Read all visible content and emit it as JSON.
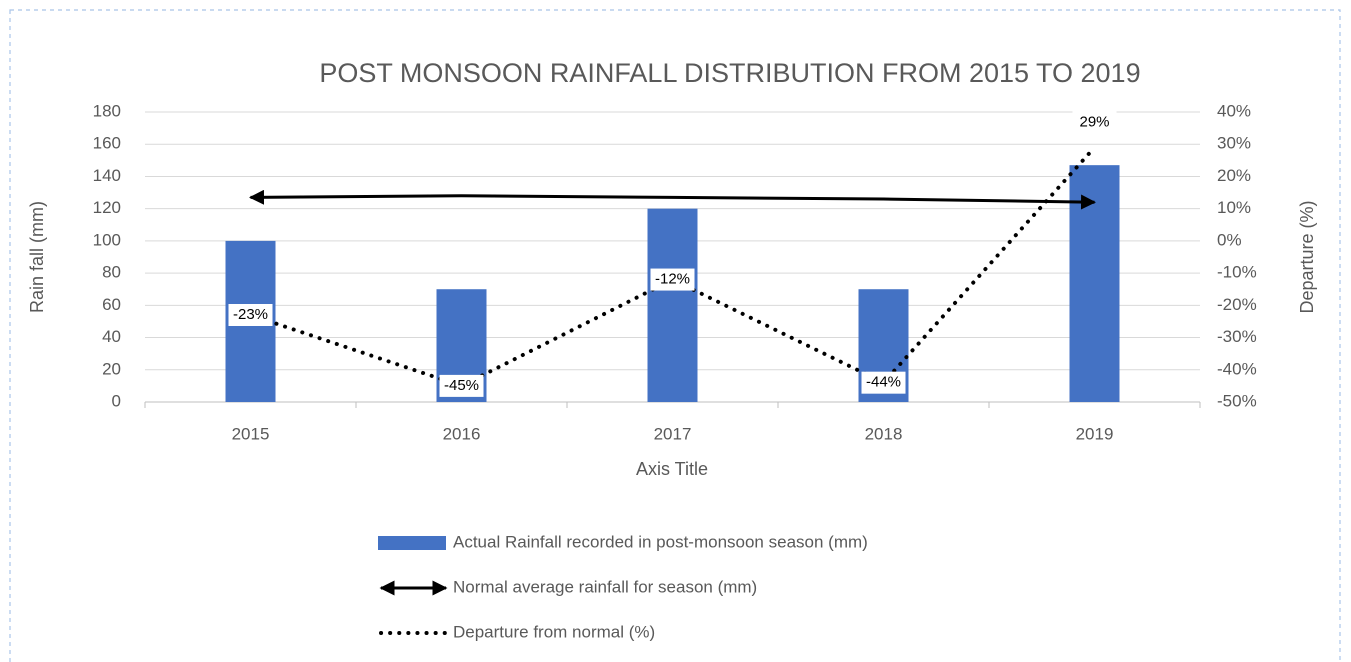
{
  "chart_data": {
    "type": "bar",
    "title": "POST MONSOON  RAINFALL DISTRIBUTION FROM 2015 TO 2019",
    "x_label": "Axis Title",
    "y_label": "Rain fall (mm)",
    "y2_label": "Departure (%)",
    "categories": [
      "2015",
      "2016",
      "2017",
      "2018",
      "2019"
    ],
    "series": [
      {
        "name": "Actual Rainfall recorded in post-monsoon season (mm)",
        "type": "bar",
        "color": "#4472c4",
        "values": [
          100,
          70,
          120,
          70,
          147
        ]
      },
      {
        "name": "Normal average rainfall for season (mm)",
        "type": "line",
        "marker": "arrow",
        "color": "#000000",
        "values": [
          127,
          128,
          127,
          126,
          124
        ]
      },
      {
        "name": "Departure from normal (%)",
        "type": "line",
        "dash": "dotted",
        "axis": "y2",
        "color": "#000000",
        "values": [
          -23,
          -45,
          -12,
          -44,
          29
        ],
        "value_labels": [
          "-23%",
          "-45%",
          "-12%",
          "-44%",
          "29%"
        ]
      }
    ],
    "ylim": [
      0,
      180
    ],
    "yticks": [
      0,
      20,
      40,
      60,
      80,
      100,
      120,
      140,
      160,
      180
    ],
    "y2lim": [
      -50,
      40
    ],
    "y2ticks": [
      {
        "value": -50,
        "label": "-50%"
      },
      {
        "value": -40,
        "label": "-40%"
      },
      {
        "value": -30,
        "label": "-30%"
      },
      {
        "value": -20,
        "label": "-20%"
      },
      {
        "value": -10,
        "label": "-10%"
      },
      {
        "value": 0,
        "label": "0%"
      },
      {
        "value": 10,
        "label": "10%"
      },
      {
        "value": 20,
        "label": "20%"
      },
      {
        "value": 30,
        "label": "30%"
      },
      {
        "value": 40,
        "label": "40%"
      }
    ],
    "grid": true,
    "legend": "bottom"
  }
}
